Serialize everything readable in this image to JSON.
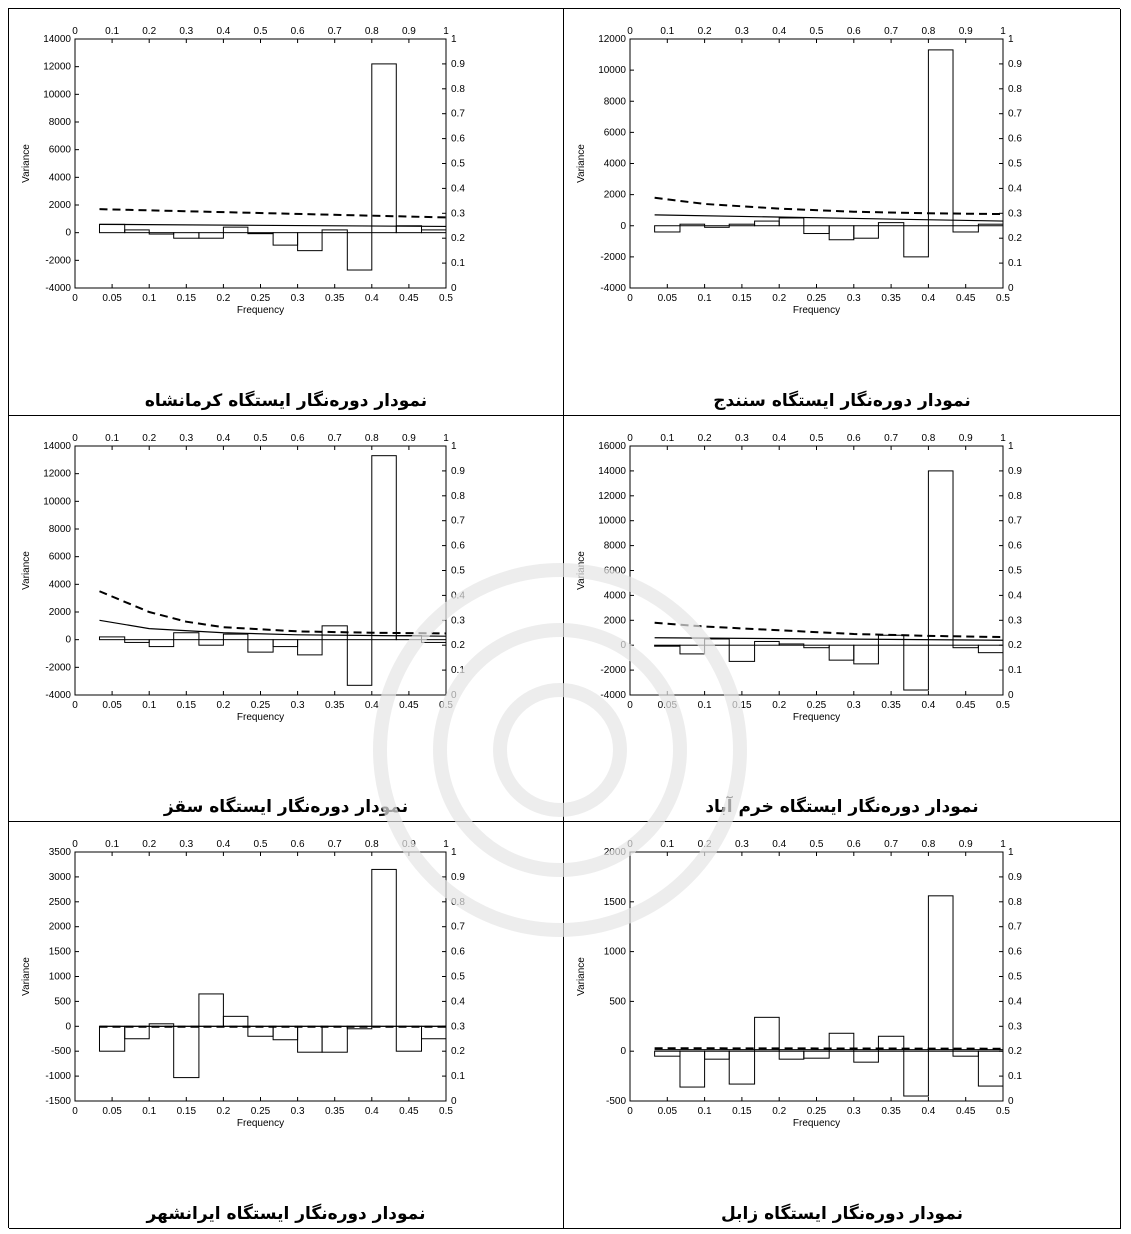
{
  "panels": [
    {
      "caption": "نمودار دوره‌نگار ایستگاه کرمانشاه",
      "chart_data": {
        "type": "bar",
        "xlabel": "Frequency",
        "ylabel": "Variance",
        "xlim": [
          0,
          0.5
        ],
        "ylim": [
          -4000,
          14000
        ],
        "yticks": [
          -4000,
          -2000,
          0,
          2000,
          4000,
          6000,
          8000,
          10000,
          12000,
          14000
        ],
        "xticks": [
          0,
          0.05,
          0.1,
          0.15,
          0.2,
          0.25,
          0.3,
          0.35,
          0.4,
          0.45,
          0.5
        ],
        "top_axis_ticks": [
          0,
          0.1,
          0.2,
          0.3,
          0.4,
          0.5,
          0.6,
          0.7,
          0.8,
          0.9,
          1
        ],
        "right_axis_ticks": [
          0,
          0.1,
          0.2,
          0.3,
          0.4,
          0.5,
          0.6,
          0.7,
          0.8,
          0.9,
          1
        ],
        "bin_edges": [
          0.033,
          0.067,
          0.1,
          0.133,
          0.167,
          0.2,
          0.233,
          0.267,
          0.3,
          0.333,
          0.367,
          0.4,
          0.433,
          0.467,
          0.5
        ],
        "values": [
          600,
          200,
          -100,
          -400,
          -400,
          400,
          0,
          -900,
          -1300,
          200,
          -2700,
          12200,
          500,
          200
        ],
        "series": [
          {
            "style": "solid",
            "x": [
              0.033,
              0.5
            ],
            "y": [
              600,
              450
            ]
          },
          {
            "style": "dashed",
            "x": [
              0.033,
              0.5
            ],
            "y": [
              1700,
              1100
            ]
          }
        ]
      }
    },
    {
      "caption": "نمودار دوره‌نگار ایستگاه سنندج",
      "chart_data": {
        "type": "bar",
        "xlabel": "Frequency",
        "ylabel": "Variance",
        "xlim": [
          0,
          0.5
        ],
        "ylim": [
          -4000,
          12000
        ],
        "yticks": [
          -4000,
          -2000,
          0,
          2000,
          4000,
          6000,
          8000,
          10000,
          12000
        ],
        "xticks": [
          0,
          0.05,
          0.1,
          0.15,
          0.2,
          0.25,
          0.3,
          0.35,
          0.4,
          0.45,
          0.5
        ],
        "top_axis_ticks": [
          0,
          0.1,
          0.2,
          0.3,
          0.4,
          0.5,
          0.6,
          0.7,
          0.8,
          0.9,
          1
        ],
        "right_axis_ticks": [
          0,
          0.1,
          0.2,
          0.3,
          0.4,
          0.5,
          0.6,
          0.7,
          0.8,
          0.9,
          1
        ],
        "bin_edges": [
          0.033,
          0.067,
          0.1,
          0.133,
          0.167,
          0.2,
          0.233,
          0.267,
          0.3,
          0.333,
          0.367,
          0.4,
          0.433,
          0.467,
          0.5
        ],
        "values": [
          -400,
          100,
          -100,
          100,
          300,
          500,
          -500,
          -900,
          -800,
          200,
          -2000,
          11300,
          -400,
          100
        ],
        "series": [
          {
            "style": "solid",
            "x": [
              0.033,
              0.5
            ],
            "y": [
              700,
              300
            ]
          },
          {
            "style": "dashed",
            "x": [
              0.033,
              0.1,
              0.2,
              0.3,
              0.4,
              0.5
            ],
            "y": [
              1800,
              1400,
              1100,
              900,
              800,
              750
            ]
          }
        ]
      }
    },
    {
      "caption": "نمودار دوره‌نگار ایستگاه سقز",
      "chart_data": {
        "type": "bar",
        "xlabel": "Frequency",
        "ylabel": "Variance",
        "xlim": [
          0,
          0.5
        ],
        "ylim": [
          -4000,
          14000
        ],
        "yticks": [
          -4000,
          -2000,
          0,
          2000,
          4000,
          6000,
          8000,
          10000,
          12000,
          14000
        ],
        "xticks": [
          0,
          0.05,
          0.1,
          0.15,
          0.2,
          0.25,
          0.3,
          0.35,
          0.4,
          0.45,
          0.5
        ],
        "top_axis_ticks": [
          0,
          0.1,
          0.2,
          0.3,
          0.4,
          0.5,
          0.6,
          0.7,
          0.8,
          0.9,
          1
        ],
        "right_axis_ticks": [
          0,
          0.1,
          0.2,
          0.3,
          0.4,
          0.5,
          0.6,
          0.7,
          0.8,
          0.9,
          1
        ],
        "bin_edges": [
          0.033,
          0.067,
          0.1,
          0.133,
          0.167,
          0.2,
          0.233,
          0.267,
          0.3,
          0.333,
          0.367,
          0.4,
          0.433,
          0.467,
          0.5
        ],
        "values": [
          200,
          -200,
          -500,
          500,
          -400,
          400,
          -900,
          -500,
          -1100,
          1000,
          -3300,
          13300,
          300,
          -200
        ],
        "series": [
          {
            "style": "solid",
            "x": [
              0.033,
              0.1,
              0.2,
              0.3,
              0.4,
              0.5
            ],
            "y": [
              1400,
              800,
              500,
              350,
              300,
              250
            ]
          },
          {
            "style": "dashed",
            "x": [
              0.033,
              0.1,
              0.15,
              0.2,
              0.3,
              0.4,
              0.5
            ],
            "y": [
              3500,
              2000,
              1300,
              900,
              600,
              500,
              450
            ]
          }
        ]
      }
    },
    {
      "caption": "نمودار دوره‌نگار ایستگاه خرم آباد",
      "chart_data": {
        "type": "bar",
        "xlabel": "Frequency",
        "ylabel": "Variance",
        "xlim": [
          0,
          0.5
        ],
        "ylim": [
          -4000,
          16000
        ],
        "yticks": [
          -4000,
          -2000,
          0,
          2000,
          4000,
          6000,
          8000,
          10000,
          12000,
          14000,
          16000
        ],
        "xticks": [
          0,
          0.05,
          0.1,
          0.15,
          0.2,
          0.25,
          0.3,
          0.35,
          0.4,
          0.45,
          0.5
        ],
        "top_axis_ticks": [
          0,
          0.1,
          0.2,
          0.3,
          0.4,
          0.5,
          0.6,
          0.7,
          0.8,
          0.9,
          1
        ],
        "right_axis_ticks": [
          0,
          0.1,
          0.2,
          0.3,
          0.4,
          0.5,
          0.6,
          0.7,
          0.8,
          0.9,
          1
        ],
        "bin_edges": [
          0.033,
          0.067,
          0.1,
          0.133,
          0.167,
          0.2,
          0.233,
          0.267,
          0.3,
          0.333,
          0.367,
          0.4,
          0.433,
          0.467,
          0.5
        ],
        "values": [
          0,
          -700,
          500,
          -1300,
          300,
          100,
          -200,
          -1200,
          -1500,
          800,
          -3600,
          14000,
          -200,
          -600
        ],
        "series": [
          {
            "style": "solid",
            "x": [
              0.033,
              0.5
            ],
            "y": [
              600,
              400
            ]
          },
          {
            "style": "dashed",
            "x": [
              0.033,
              0.1,
              0.2,
              0.3,
              0.4,
              0.5
            ],
            "y": [
              1800,
              1500,
              1200,
              900,
              750,
              650
            ]
          }
        ]
      }
    },
    {
      "caption": "نمودار دوره‌نگار ایستگاه ایرانشهر",
      "chart_data": {
        "type": "bar",
        "xlabel": "Frequency",
        "ylabel": "Variance",
        "xlim": [
          0,
          0.5
        ],
        "ylim": [
          -1500,
          3500
        ],
        "yticks": [
          -1500,
          -1000,
          -500,
          0,
          500,
          1000,
          1500,
          2000,
          2500,
          3000,
          3500
        ],
        "xticks": [
          0,
          0.05,
          0.1,
          0.15,
          0.2,
          0.25,
          0.3,
          0.35,
          0.4,
          0.45,
          0.5
        ],
        "top_axis_ticks": [
          0,
          0.1,
          0.2,
          0.3,
          0.4,
          0.5,
          0.6,
          0.7,
          0.8,
          0.9,
          1
        ],
        "right_axis_ticks": [
          0,
          0.1,
          0.2,
          0.3,
          0.4,
          0.5,
          0.6,
          0.7,
          0.8,
          0.9,
          1
        ],
        "bin_edges": [
          0.033,
          0.067,
          0.1,
          0.133,
          0.167,
          0.2,
          0.233,
          0.267,
          0.3,
          0.333,
          0.367,
          0.4,
          0.433,
          0.467,
          0.5
        ],
        "values": [
          -500,
          -250,
          50,
          -1030,
          650,
          200,
          -200,
          -270,
          -520,
          -520,
          -50,
          3150,
          -500,
          -250
        ],
        "series": [
          {
            "style": "solid",
            "x": [
              0.033,
              0.5
            ],
            "y": [
              0,
              0
            ]
          },
          {
            "style": "dashed",
            "x": [
              0.033,
              0.5
            ],
            "y": [
              -10,
              -10
            ]
          }
        ]
      }
    },
    {
      "caption": "نمودار دوره‌نگار ایستگاه زابل",
      "chart_data": {
        "type": "bar",
        "xlabel": "Frequency",
        "ylabel": "Variance",
        "xlim": [
          0,
          0.5
        ],
        "ylim": [
          -500,
          2000
        ],
        "yticks": [
          -500,
          0,
          500,
          1000,
          1500,
          2000
        ],
        "xticks": [
          0,
          0.05,
          0.1,
          0.15,
          0.2,
          0.25,
          0.3,
          0.35,
          0.4,
          0.45,
          0.5
        ],
        "top_axis_ticks": [
          0,
          0.1,
          0.2,
          0.3,
          0.4,
          0.5,
          0.6,
          0.7,
          0.8,
          0.9,
          1
        ],
        "right_axis_ticks": [
          0,
          0.1,
          0.2,
          0.3,
          0.4,
          0.5,
          0.6,
          0.7,
          0.8,
          0.9,
          1
        ],
        "bin_edges": [
          0.033,
          0.067,
          0.1,
          0.133,
          0.167,
          0.2,
          0.233,
          0.267,
          0.3,
          0.333,
          0.367,
          0.4,
          0.433,
          0.467,
          0.5
        ],
        "values": [
          -50,
          -360,
          -80,
          -330,
          340,
          -80,
          -70,
          180,
          -110,
          150,
          -450,
          1560,
          -50,
          -350
        ],
        "series": [
          {
            "style": "solid",
            "x": [
              0.033,
              0.5
            ],
            "y": [
              15,
              15
            ]
          },
          {
            "style": "dashed",
            "x": [
              0.033,
              0.5
            ],
            "y": [
              30,
              25
            ]
          }
        ]
      }
    }
  ]
}
